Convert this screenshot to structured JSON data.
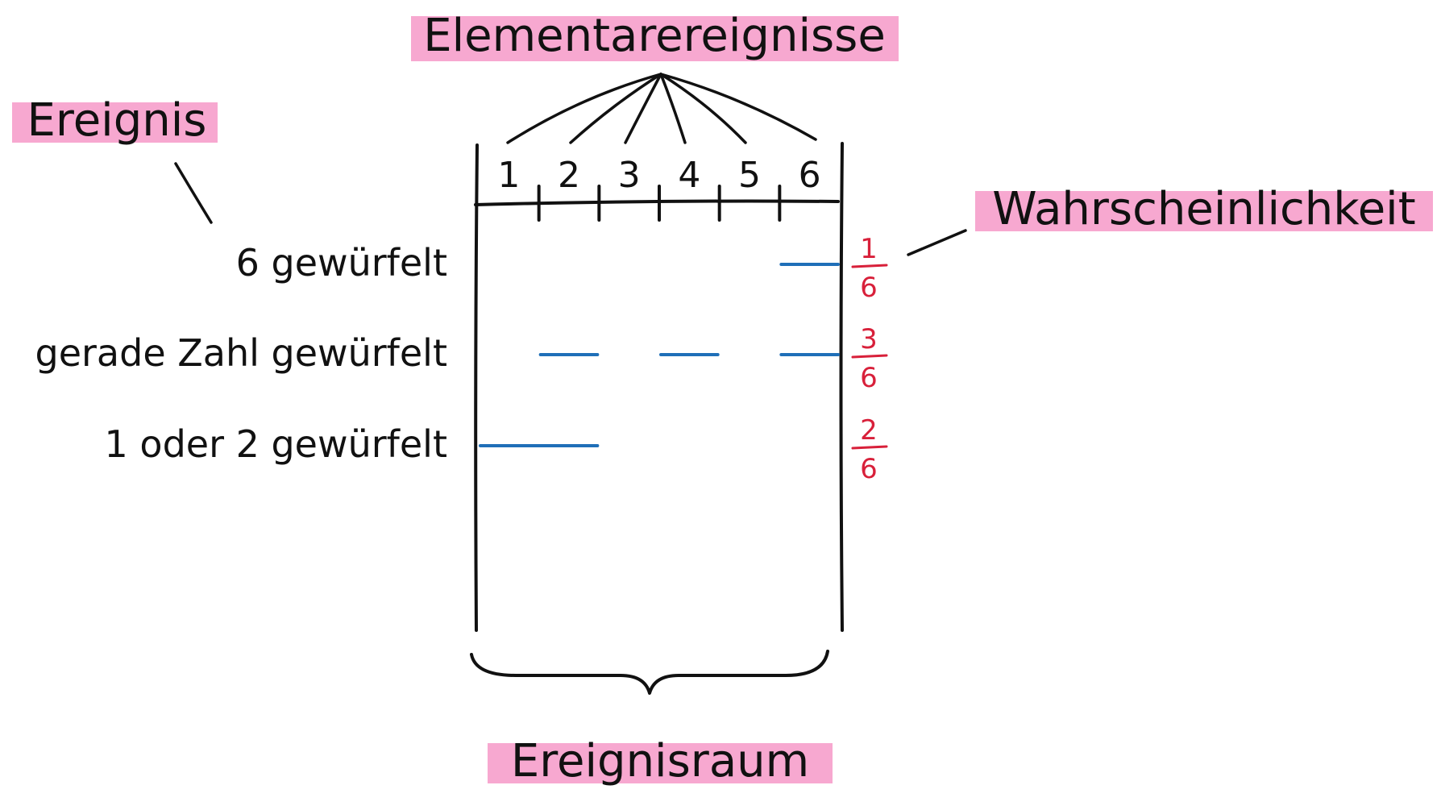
{
  "labels": {
    "elementary_events": "Elementarereignisse",
    "event": "Ereignis",
    "probability": "Wahrscheinlichkeit",
    "sample_space": "Ereignisraum"
  },
  "outcomes": [
    "1",
    "2",
    "3",
    "4",
    "5",
    "6"
  ],
  "events": [
    {
      "label": "6 gewürfelt",
      "outcomes": [
        6
      ],
      "numerator": "1",
      "denominator": "6"
    },
    {
      "label": "gerade Zahl gewürfelt",
      "outcomes": [
        2,
        4,
        6
      ],
      "numerator": "3",
      "denominator": "6"
    },
    {
      "label": "1 oder 2 gewürfelt",
      "outcomes": [
        1,
        2
      ],
      "numerator": "2",
      "denominator": "6"
    }
  ],
  "colors": {
    "highlight": "#f7a8d0",
    "ink": "#111111",
    "event_line": "#1f6fb8",
    "probability": "#d8203a"
  }
}
